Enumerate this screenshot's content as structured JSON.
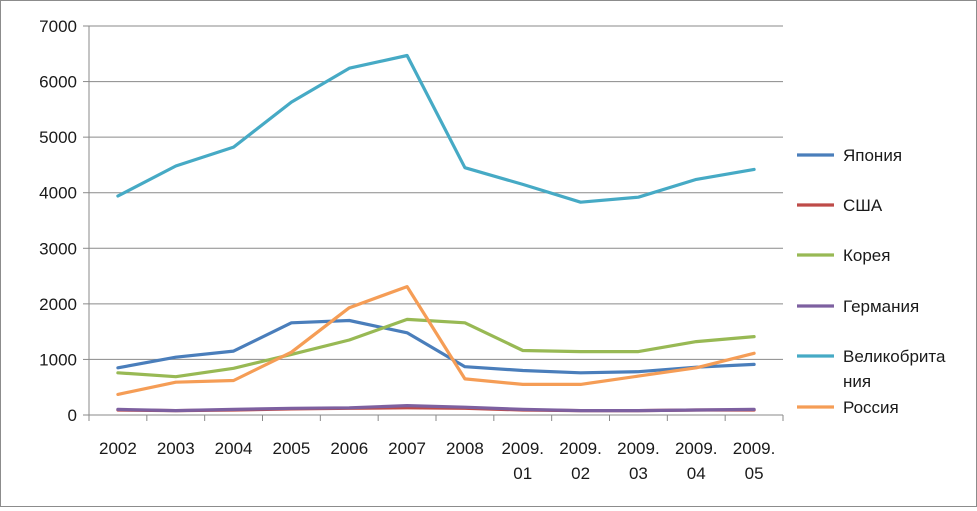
{
  "chart_data": {
    "type": "line",
    "title": "",
    "xlabel": "",
    "ylabel": "",
    "ylim": [
      0,
      7000
    ],
    "yticks": [
      0,
      1000,
      2000,
      3000,
      4000,
      5000,
      6000,
      7000
    ],
    "ytick_labels": [
      "0",
      "1000",
      "2000",
      "3000",
      "4000",
      "5000",
      "6000",
      "7000"
    ],
    "grid": "horizontal",
    "legend_position": "right",
    "categories": [
      [
        "2002"
      ],
      [
        "2003"
      ],
      [
        "2004"
      ],
      [
        "2005"
      ],
      [
        "2006"
      ],
      [
        "2007"
      ],
      [
        "2008"
      ],
      [
        "2009.",
        "01"
      ],
      [
        "2009.",
        "02"
      ],
      [
        "2009.",
        "03"
      ],
      [
        "2009.",
        "04"
      ],
      [
        "2009.",
        "05"
      ]
    ],
    "series": [
      {
        "name": "Япония",
        "name_lines": [
          "Япония"
        ],
        "color": "#4a7ebb",
        "values": [
          850,
          1040,
          1150,
          1660,
          1700,
          1480,
          870,
          800,
          760,
          780,
          860,
          910
        ]
      },
      {
        "name": "США",
        "name_lines": [
          "США"
        ],
        "color": "#be4b48",
        "values": [
          90,
          80,
          90,
          110,
          120,
          130,
          120,
          90,
          80,
          80,
          90,
          90
        ]
      },
      {
        "name": "Корея",
        "name_lines": [
          "Корея"
        ],
        "color": "#98b954",
        "values": [
          760,
          690,
          840,
          1090,
          1350,
          1720,
          1660,
          1160,
          1140,
          1140,
          1320,
          1410
        ]
      },
      {
        "name": "Германия",
        "name_lines": [
          "Германия"
        ],
        "color": "#7d60a0",
        "values": [
          100,
          80,
          100,
          120,
          130,
          170,
          140,
          100,
          80,
          80,
          90,
          100
        ]
      },
      {
        "name": "Великобритания",
        "name_lines": [
          "Великобрита",
          "ния"
        ],
        "color": "#46aac5",
        "values": [
          3940,
          4480,
          4820,
          5630,
          6240,
          6470,
          4450,
          4150,
          3830,
          3920,
          4240,
          4420
        ]
      },
      {
        "name": "Россия",
        "name_lines": [
          "Россия"
        ],
        "color": "#f59d56",
        "values": [
          370,
          590,
          620,
          1130,
          1930,
          2310,
          650,
          550,
          550,
          700,
          850,
          1110
        ]
      }
    ]
  }
}
